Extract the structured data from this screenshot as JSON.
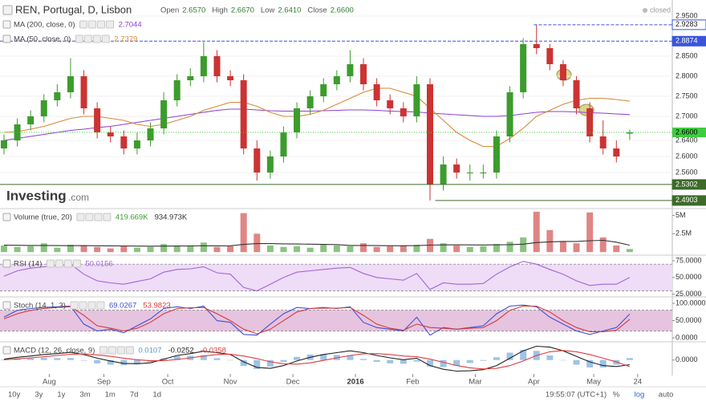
{
  "header": {
    "title": "REN, Portugal, D, Lisbon",
    "quote": [
      {
        "name": "Open",
        "value": 2.657,
        "label": "2.6570"
      },
      {
        "name": "High",
        "value": 2.667,
        "label": "2.6670"
      },
      {
        "name": "Low",
        "value": 2.641,
        "label": "2.6410"
      },
      {
        "name": "Close",
        "value": 2.66,
        "label": "2.6600"
      }
    ]
  },
  "status": "closed",
  "watermark": {
    "brand": "Investing",
    "suffix": ".com"
  },
  "toolbar": {
    "ranges": [
      "10y",
      "3y",
      "1y",
      "3m",
      "1m",
      "7d",
      "1d"
    ],
    "time": "19:55:07 (UTC+1)",
    "options": [
      "%",
      "log",
      "auto"
    ]
  },
  "chart_data": [
    {
      "type": "candlestick",
      "up_color": "#3c9c2c",
      "down_color": "#cc3333",
      "grid": true,
      "xlim": [
        -0.3,
        50.2
      ],
      "xticks": [
        {
          "value": 3.4,
          "label": "Aug"
        },
        {
          "value": 7.5,
          "label": "Sep"
        },
        {
          "value": 12.3,
          "label": "Oct"
        },
        {
          "value": 17,
          "label": "Nov"
        },
        {
          "value": 21.7,
          "label": "Dec"
        },
        {
          "value": 26.4,
          "label": "2016",
          "bold": true
        },
        {
          "value": 30.7,
          "label": "Feb"
        },
        {
          "value": 35.4,
          "label": "Mar"
        },
        {
          "value": 39.8,
          "label": "Apr"
        },
        {
          "value": 44.3,
          "label": "May"
        },
        {
          "value": 47.6,
          "label": "24"
        }
      ],
      "ylim": [
        2.474,
        2.98
      ],
      "yticks": [
        {
          "value": 2.95,
          "label": "2.9500"
        },
        {
          "value": 2.85,
          "label": "2.8500"
        },
        {
          "value": 2.8,
          "label": "2.8000"
        },
        {
          "value": 2.75,
          "label": "2.7500"
        },
        {
          "value": 2.7,
          "label": "2.7000"
        },
        {
          "value": 2.64,
          "label": "2.6400"
        },
        {
          "value": 2.6,
          "label": "2.6000"
        },
        {
          "value": 2.56,
          "label": "2.5600"
        }
      ],
      "open": [
        2.62,
        2.64,
        2.68,
        2.7,
        2.74,
        2.76,
        2.8,
        2.72,
        2.66,
        2.65,
        2.62,
        2.64,
        2.67,
        2.74,
        2.79,
        2.8,
        2.85,
        2.8,
        2.79,
        2.62,
        2.56,
        2.6,
        2.66,
        2.72,
        2.75,
        2.78,
        2.8,
        2.83,
        2.78,
        2.74,
        2.72,
        2.7,
        2.78,
        2.53,
        2.58,
        2.56,
        2.56,
        2.56,
        2.65,
        2.76,
        2.88,
        2.87,
        2.83,
        2.79,
        2.72,
        2.65,
        2.62,
        2.657
      ],
      "high": [
        2.655,
        2.695,
        2.715,
        2.755,
        2.78,
        2.845,
        2.815,
        2.735,
        2.675,
        2.665,
        2.66,
        2.685,
        2.76,
        2.805,
        2.82,
        2.885,
        2.865,
        2.815,
        2.805,
        2.64,
        2.615,
        2.675,
        2.735,
        2.765,
        2.795,
        2.815,
        2.865,
        2.845,
        2.795,
        2.755,
        2.735,
        2.8,
        2.795,
        2.6,
        2.595,
        2.58,
        2.58,
        2.665,
        2.775,
        2.895,
        2.9283,
        2.88,
        2.84,
        2.8,
        2.735,
        2.69,
        2.64,
        2.667
      ],
      "low": [
        2.605,
        2.625,
        2.665,
        2.685,
        2.725,
        2.745,
        2.705,
        2.645,
        2.635,
        2.605,
        2.605,
        2.625,
        2.655,
        2.725,
        2.775,
        2.785,
        2.785,
        2.775,
        2.605,
        2.54,
        2.545,
        2.585,
        2.645,
        2.705,
        2.735,
        2.765,
        2.785,
        2.765,
        2.725,
        2.705,
        2.685,
        2.685,
        2.4903,
        2.515,
        2.545,
        2.54,
        2.545,
        2.545,
        2.635,
        2.745,
        2.855,
        2.815,
        2.775,
        2.705,
        2.635,
        2.605,
        2.585,
        2.641
      ],
      "close": [
        2.64,
        2.68,
        2.7,
        2.74,
        2.76,
        2.8,
        2.72,
        2.66,
        2.65,
        2.62,
        2.64,
        2.67,
        2.74,
        2.79,
        2.8,
        2.85,
        2.8,
        2.79,
        2.62,
        2.56,
        2.6,
        2.66,
        2.72,
        2.75,
        2.78,
        2.8,
        2.83,
        2.78,
        2.74,
        2.72,
        2.7,
        2.78,
        2.53,
        2.58,
        2.56,
        2.56,
        2.56,
        2.65,
        2.76,
        2.88,
        2.87,
        2.83,
        2.79,
        2.72,
        2.65,
        2.62,
        2.6,
        2.66
      ],
      "series": [
        {
          "name": "MA (200, close, 0)",
          "color": "#8e3fd6",
          "values": [
            2.64,
            2.645,
            2.65,
            2.655,
            2.66,
            2.665,
            2.668,
            2.672,
            2.675,
            2.68,
            2.685,
            2.69,
            2.695,
            2.7,
            2.705,
            2.71,
            2.715,
            2.718,
            2.718,
            2.716,
            2.714,
            2.713,
            2.713,
            2.713,
            2.714,
            2.715,
            2.716,
            2.716,
            2.715,
            2.713,
            2.712,
            2.711,
            2.708,
            2.706,
            2.704,
            2.702,
            2.7,
            2.7,
            2.702,
            2.706,
            2.71,
            2.712,
            2.712,
            2.711,
            2.709,
            2.708,
            2.706,
            2.7044
          ]
        },
        {
          "name": "MA (50, close, 0)",
          "color": "#d68a3a",
          "values": [
            2.66,
            2.662,
            2.668,
            2.675,
            2.685,
            2.695,
            2.7,
            2.7,
            2.695,
            2.69,
            2.68,
            2.675,
            2.68,
            2.69,
            2.7,
            2.715,
            2.725,
            2.735,
            2.735,
            2.725,
            2.71,
            2.7,
            2.7,
            2.705,
            2.715,
            2.73,
            2.745,
            2.76,
            2.77,
            2.77,
            2.76,
            2.75,
            2.72,
            2.69,
            2.66,
            2.64,
            2.625,
            2.625,
            2.645,
            2.67,
            2.7,
            2.715,
            2.73,
            2.74,
            2.745,
            2.745,
            2.742,
            2.7379
          ]
        }
      ],
      "levels": [
        {
          "value": 2.9283,
          "color": "#3a55d9",
          "dash": true,
          "filled": false,
          "start": 39.8
        },
        {
          "value": 2.8874,
          "color": "#3a55d9",
          "dash": true,
          "filled": true,
          "start": -0.3
        },
        {
          "value": 2.5302,
          "color": "#3d6b2a",
          "dash": false,
          "filled": true,
          "start": -0.3
        },
        {
          "value": 2.4903,
          "color": "#3d6b2a",
          "dash": false,
          "filled": true,
          "start": 32.4
        }
      ],
      "last_price": {
        "value": 2.66,
        "label": "2.6600",
        "color": "#3fcc3f"
      }
    },
    {
      "type": "bar",
      "title": "Volume (true, 20)",
      "ylim": [
        -200000,
        5700000
      ],
      "yticks": [
        {
          "value": 5000000,
          "label": "5M"
        },
        {
          "value": 2500000,
          "label": "2.5M"
        }
      ],
      "series": [
        {
          "style": "bar",
          "color": "#3c9c2c",
          "last_label": "419.669K",
          "values": [
            900000,
            700000,
            800000,
            1200000,
            600000,
            1000000,
            900000,
            700000,
            500000,
            800000,
            600000,
            700000,
            1100000,
            800000,
            900000,
            1300000,
            700000,
            800000,
            5300000,
            2500000,
            900000,
            700000,
            800000,
            600000,
            1000000,
            900000,
            800000,
            1200000,
            700000,
            800000,
            900000,
            1000000,
            1800000,
            1200000,
            900000,
            700000,
            800000,
            1100000,
            1400000,
            2000000,
            5500000,
            3000000,
            1500000,
            1200000,
            5400000,
            2000000,
            900000,
            419669
          ]
        },
        {
          "style": "line",
          "color": "#333333",
          "last_label": "934.973K",
          "values": [
            950000,
            930000,
            900000,
            900000,
            880000,
            870000,
            880000,
            860000,
            850000,
            840000,
            820000,
            800000,
            820000,
            830000,
            840000,
            860000,
            850000,
            860000,
            1050000,
            1150000,
            1150000,
            1120000,
            1100000,
            1080000,
            1050000,
            1020000,
            900000,
            900000,
            880000,
            870000,
            860000,
            880000,
            950000,
            980000,
            990000,
            980000,
            970000,
            990000,
            1010000,
            1080000,
            1300000,
            1400000,
            1450000,
            1450000,
            1550000,
            1600000,
            1350000,
            934973
          ]
        }
      ]
    },
    {
      "type": "line",
      "title": "RSI (14)",
      "ylim": [
        21,
        81
      ],
      "band": [
        30,
        70
      ],
      "band_color": "#efdcf7",
      "yticks": [
        {
          "value": 75,
          "label": "75.0000"
        },
        {
          "value": 50,
          "label": "50.0000"
        },
        {
          "value": 25,
          "label": "25.0000"
        }
      ],
      "series": [
        {
          "color": "#a066d8",
          "values": [
            52,
            60,
            64,
            66,
            68,
            70,
            55,
            45,
            42,
            40,
            44,
            48,
            58,
            62,
            63,
            66,
            57,
            55,
            35,
            30,
            40,
            50,
            58,
            60,
            62,
            64,
            65,
            56,
            50,
            48,
            46,
            56,
            32,
            42,
            40,
            40,
            41,
            55,
            66,
            74,
            70,
            62,
            55,
            45,
            38,
            40,
            40,
            50.0156
          ]
        }
      ]
    },
    {
      "type": "line",
      "title": "Stoch (14, 1, 3)",
      "ylim": [
        -9,
        114
      ],
      "band": [
        20,
        80
      ],
      "band_color": "#e6c3df",
      "yticks": [
        {
          "value": 100,
          "label": "100.0000"
        },
        {
          "value": 50,
          "label": "50.0000"
        },
        {
          "value": 0,
          "label": "0.0000"
        }
      ],
      "series": [
        {
          "color": "#3f51d6",
          "values": [
            60,
            80,
            85,
            88,
            90,
            92,
            40,
            20,
            25,
            15,
            35,
            55,
            85,
            90,
            85,
            92,
            50,
            45,
            10,
            8,
            40,
            70,
            88,
            85,
            88,
            85,
            90,
            45,
            30,
            25,
            20,
            60,
            8,
            30,
            25,
            30,
            35,
            70,
            92,
            95,
            90,
            60,
            40,
            20,
            10,
            20,
            30,
            69.0267
          ]
        },
        {
          "color": "#d63a3a",
          "values": [
            55,
            70,
            80,
            85,
            88,
            90,
            65,
            35,
            28,
            20,
            28,
            45,
            70,
            85,
            87,
            88,
            70,
            50,
            25,
            12,
            25,
            50,
            75,
            85,
            86,
            86,
            88,
            65,
            40,
            28,
            22,
            40,
            30,
            28,
            25,
            28,
            30,
            50,
            80,
            92,
            92,
            75,
            50,
            30,
            18,
            18,
            22,
            53.9823
          ]
        }
      ]
    },
    {
      "type": "combo",
      "title": "MACD (12, 26, close, 9)",
      "ylim": [
        -0.075,
        0.09
      ],
      "yticks": [
        {
          "value": 0,
          "label": "0.0000"
        }
      ],
      "series": [
        {
          "style": "bar",
          "color": "#5b9bd5",
          "values": [
            0.003,
            0.009,
            0.01,
            0.012,
            0.01,
            0.011,
            -0.003,
            -0.018,
            -0.025,
            -0.028,
            -0.022,
            -0.011,
            0.009,
            0.022,
            0.023,
            0.026,
            0.01,
            -0.002,
            -0.032,
            -0.048,
            -0.035,
            -0.01,
            0.017,
            0.03,
            0.032,
            0.028,
            0.025,
            0.006,
            -0.01,
            -0.018,
            -0.02,
            -0.008,
            -0.035,
            -0.038,
            -0.03,
            -0.016,
            -0.004,
            0.015,
            0.04,
            0.055,
            0.05,
            0.025,
            -0.002,
            -0.025,
            -0.04,
            -0.04,
            -0.025,
            0.0107
          ]
        },
        {
          "style": "line",
          "color": "#222222",
          "values": [
            0.005,
            0.015,
            0.022,
            0.03,
            0.035,
            0.042,
            0.03,
            0.01,
            -0.005,
            -0.018,
            -0.02,
            -0.015,
            0.005,
            0.025,
            0.035,
            0.048,
            0.04,
            0.03,
            -0.01,
            -0.04,
            -0.045,
            -0.03,
            -0.005,
            0.015,
            0.03,
            0.04,
            0.05,
            0.04,
            0.025,
            0.012,
            0.002,
            0.01,
            -0.03,
            -0.05,
            -0.06,
            -0.058,
            -0.052,
            -0.03,
            0.01,
            0.05,
            0.075,
            0.07,
            0.05,
            0.02,
            -0.01,
            -0.03,
            -0.035,
            -0.0252
          ]
        },
        {
          "style": "line",
          "color": "#e03c3c",
          "values": [
            0.002,
            0.006,
            0.012,
            0.018,
            0.025,
            0.031,
            0.033,
            0.028,
            0.02,
            0.01,
            0.002,
            -0.004,
            -0.004,
            0.003,
            0.012,
            0.022,
            0.03,
            0.032,
            0.022,
            0.008,
            -0.01,
            -0.02,
            -0.022,
            -0.015,
            -0.002,
            0.012,
            0.025,
            0.034,
            0.035,
            0.03,
            0.022,
            0.018,
            0.005,
            -0.012,
            -0.03,
            -0.042,
            -0.048,
            -0.045,
            -0.03,
            -0.005,
            0.025,
            0.045,
            0.052,
            0.045,
            0.03,
            0.01,
            -0.01,
            -0.0358
          ]
        }
      ]
    }
  ]
}
